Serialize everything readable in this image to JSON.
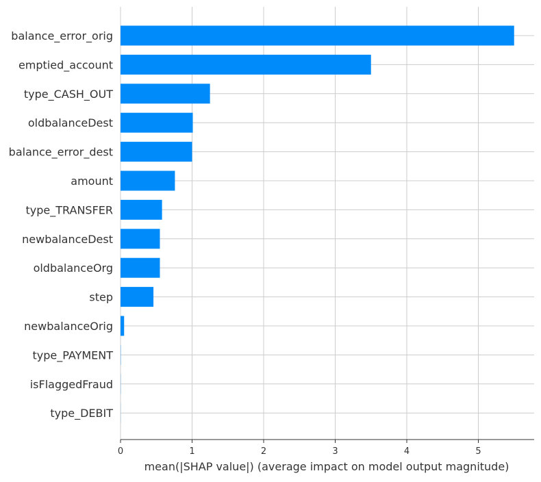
{
  "chart_data": {
    "type": "bar",
    "orientation": "horizontal",
    "title": "",
    "xlabel": "mean(|SHAP value|) (average impact on model output magnitude)",
    "ylabel": "",
    "xlim": [
      0,
      5.78
    ],
    "xticks": [
      0,
      1,
      2,
      3,
      4,
      5
    ],
    "grid": true,
    "bar_color": "#008bfb",
    "categories": [
      "balance_error_orig",
      "emptied_account",
      "type_CASH_OUT",
      "oldbalanceDest",
      "balance_error_dest",
      "amount",
      "type_TRANSFER",
      "newbalanceDest",
      "oldbalanceOrg",
      "step",
      "newbalanceOrig",
      "type_PAYMENT",
      "isFlaggedFraud",
      "type_DEBIT"
    ],
    "values": [
      5.5,
      3.5,
      1.25,
      1.01,
      1.0,
      0.76,
      0.58,
      0.55,
      0.55,
      0.46,
      0.05,
      0.003,
      0.002,
      0.001
    ]
  }
}
